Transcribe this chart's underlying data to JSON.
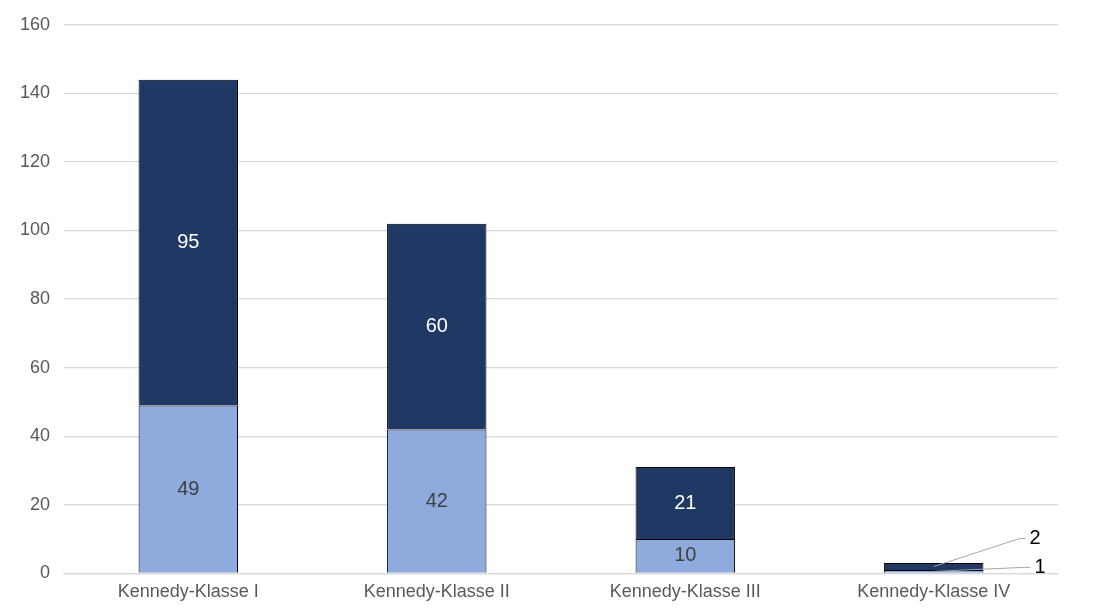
{
  "chart_data": {
    "type": "bar",
    "stacked": true,
    "categories": [
      "Kennedy-Klasse I",
      "Kennedy-Klasse II",
      "Kennedy-Klasse III",
      "Kennedy-Klasse IV"
    ],
    "series": [
      {
        "color": "#8faadc",
        "values": [
          49,
          42,
          10,
          1
        ]
      },
      {
        "color": "#203864",
        "values": [
          95,
          60,
          21,
          2
        ]
      }
    ],
    "ylim": [
      0,
      160
    ],
    "yticks": [
      0,
      20,
      40,
      60,
      80,
      100,
      120,
      140,
      160
    ],
    "grid": "y",
    "data_labels": true,
    "legend": false
  }
}
